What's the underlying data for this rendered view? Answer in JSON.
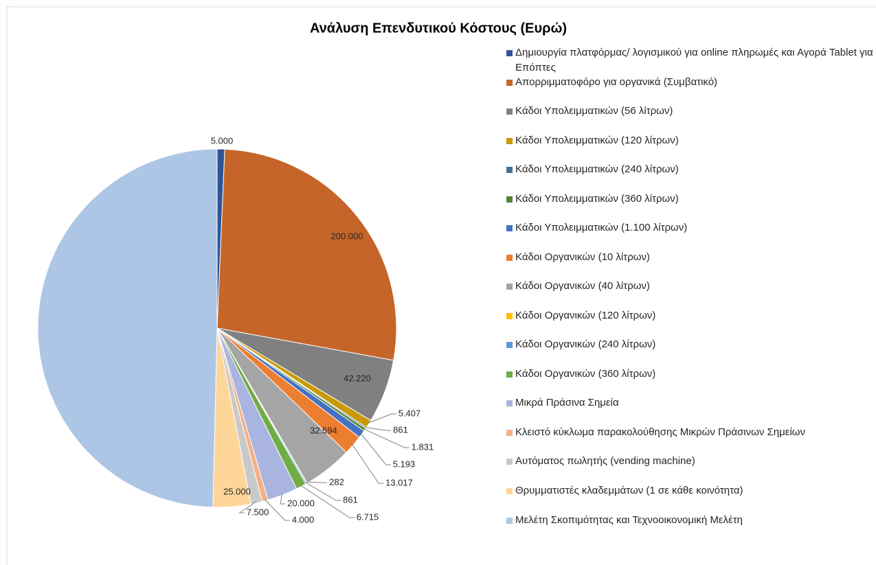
{
  "chart_data": {
    "type": "pie",
    "title": "Ανάλυση Επενδυτικού Κόστους (Ευρώ)",
    "categories": [
      "Δημιουργία πλατφόρμας/ λογισμικού για online πληρωμές και Αγορά Tablet για Επόπτες",
      "Απορριμματοφόρο για οργανικά (Συμβατικό)",
      "Κάδοι Υπολειμματικών (56 λίτρων)",
      "Κάδοι Υπολειμματικών (120 λίτρων)",
      "Κάδοι Υπολειμματικών (240 λίτρων)",
      "Κάδοι Υπολειμματικών (360 λίτρων)",
      "Κάδοι Υπολειμματικών (1.100 λίτρων)",
      "Κάδοι Οργανικών (10 λίτρων)",
      "Κάδοι Οργανικών (40 λίτρων)",
      "Κάδοι Οργανικών (120 λίτρων)",
      "Κάδοι Οργανικών (240 λίτρων)",
      "Κάδοι Οργανικών (360 λίτρων)",
      "Μικρά Πράσινα Σημεία",
      "Κλειστό κύκλωμα παρακολούθησης Μικρών Πράσινων Σημείων",
      "Αυτόματος πωλητής (vending machine)",
      "Θρυμματιστές κλαδεμμάτων (1 σε κάθε κοινότητα)",
      "Μελέτη Σκοπιμότητας και Τεχνοοικονομική Μελέτη"
    ],
    "values": [
      5000,
      200000,
      42220,
      5407,
      861,
      1831,
      5193,
      13017,
      32594,
      282,
      861,
      6715,
      20000,
      4000,
      7500,
      25000,
      365000
    ],
    "value_labels": [
      "5.000",
      "200.000",
      "42.220",
      "5.407",
      "861",
      "1.831",
      "5.193",
      "13.017",
      "32.594",
      "282",
      "861",
      "6.715",
      "20.000",
      "4.000",
      "7.500",
      "25.000",
      null
    ],
    "colors": [
      "#2f5597",
      "#c5652a",
      "#808080",
      "#c99a06",
      "#41719c",
      "#548235",
      "#4472c4",
      "#ed7d31",
      "#a5a5a5",
      "#ffc000",
      "#5b9bd5",
      "#70ad47",
      "#a9b5e0",
      "#f4b183",
      "#c9c9c9",
      "#ffd699",
      "#adc6e6"
    ],
    "legend": "right"
  }
}
